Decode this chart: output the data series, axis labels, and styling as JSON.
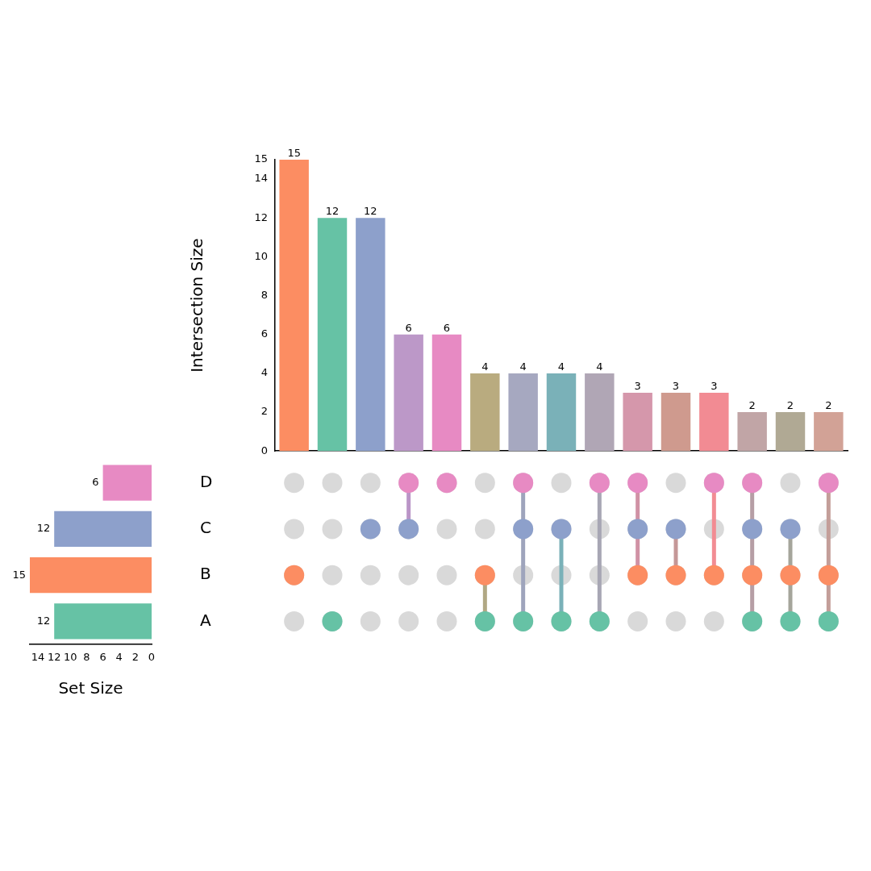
{
  "chart_data": [
    {
      "type": "bar",
      "ylabel": "Intersection Size",
      "categories": [
        null,
        null,
        null,
        null,
        null,
        null,
        null,
        null,
        null,
        null,
        null,
        null,
        null,
        null,
        null
      ],
      "values": [
        15,
        12,
        12,
        6,
        6,
        4,
        4,
        4,
        4,
        3,
        3,
        3,
        2,
        2,
        2
      ],
      "colors": [
        "#fc8d62",
        "#66c2a5",
        "#8da0cb",
        "#bc98c8",
        "#e78ac3",
        "#b9ab7f",
        "#a6a8c0",
        "#7ab1b8",
        "#b0a6b5",
        "#d597ab",
        "#cf9a8e",
        "#f28b93",
        "#c1a5a6",
        "#b0a994",
        "#d2a296"
      ],
      "ylim": [
        0,
        15
      ],
      "yticks": [
        0,
        2,
        4,
        6,
        8,
        10,
        12,
        14,
        15
      ],
      "data_labels": true,
      "tick_labels": "y"
    },
    {
      "type": "bar",
      "orientation": "horizontal",
      "xlabel": "Set Size",
      "categories": [
        "D",
        "C",
        "B",
        "A"
      ],
      "values": [
        6,
        12,
        15,
        12
      ],
      "colors": [
        "#e78ac3",
        "#8da0cb",
        "#fc8d62",
        "#66c2a5"
      ],
      "xlim": [
        15,
        0
      ],
      "xticks": [
        14,
        12,
        10,
        8,
        6,
        4,
        2,
        0
      ],
      "data_labels": true
    }
  ]
}
